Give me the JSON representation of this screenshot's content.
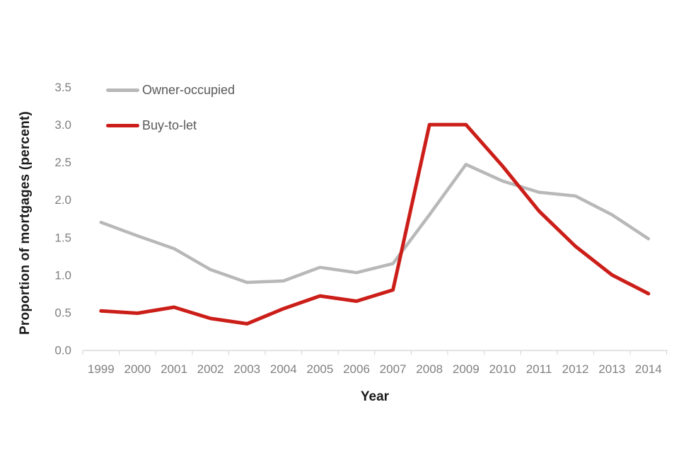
{
  "chart_data": {
    "type": "line",
    "title": "",
    "xlabel": "Year",
    "ylabel": "Proportion of mortgages (percent)",
    "categories": [
      "1999",
      "2000",
      "2001",
      "2002",
      "2003",
      "2004",
      "2005",
      "2006",
      "2007",
      "2008",
      "2009",
      "2010",
      "2011",
      "2012",
      "2013",
      "2014"
    ],
    "series": [
      {
        "name": "Owner-occupied",
        "color": "#b8b8b8",
        "values": [
          1.7,
          1.52,
          1.35,
          1.07,
          0.9,
          0.92,
          1.1,
          1.03,
          1.15,
          1.8,
          2.47,
          2.25,
          2.1,
          2.05,
          1.8,
          1.48
        ]
      },
      {
        "name": "Buy-to-let",
        "color": "#cc1e19",
        "values": [
          0.52,
          0.49,
          0.57,
          0.42,
          0.35,
          0.55,
          0.72,
          0.65,
          0.8,
          3.0,
          3.0,
          2.45,
          1.85,
          1.38,
          1.0,
          0.75
        ]
      }
    ],
    "ylim": [
      0,
      3.5
    ],
    "ytick_step": 0.5,
    "ytick_labels": [
      "0.0",
      "0.5",
      "1.0",
      "1.5",
      "2.0",
      "2.5",
      "3.0",
      "3.5"
    ],
    "grid": false,
    "legend_position": "top-left-inside",
    "axis_color": "#d9d9d9",
    "tick_label_color": "#7f7f7f",
    "legend_text_color": "#595959",
    "background_color": "#ffffff"
  }
}
